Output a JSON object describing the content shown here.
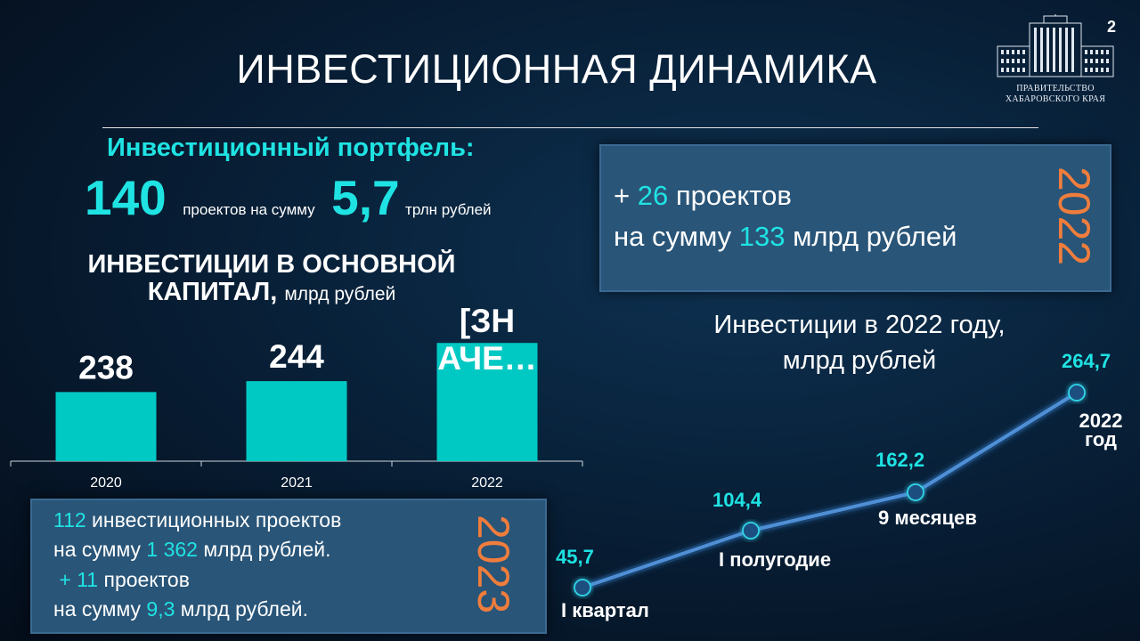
{
  "page_number": "2",
  "logo": {
    "line1": "ПРАВИТЕЛЬСТВО",
    "line2": "ХАБАРОВСКОГО КРАЯ"
  },
  "title": "ИНВЕСТИЦИОННАЯ ДИНАМИКА",
  "portfolio": {
    "heading": "Инвестиционный портфель:",
    "projects_count": "140",
    "projects_text": "проектов на сумму",
    "sum_value": "5,7",
    "sum_unit": "трлн рублей"
  },
  "capital_chart": {
    "heading": "ИНВЕСТИЦИИ В ОСНОВНОЙ КАПИТАЛ,",
    "unit": "млрд рублей"
  },
  "box_2022": {
    "year": "2022",
    "line1_prefix": "+ ",
    "line1_count": "26",
    "line1_suffix": " проектов",
    "line2_prefix": "на сумму ",
    "line2_value": "133",
    "line2_suffix": " млрд рублей"
  },
  "line_chart_heading": {
    "line1": "Инвестиции в 2022 году,",
    "line2": "млрд рублей"
  },
  "box_2023": {
    "year": "2023",
    "l1_count": "112",
    "l1_text": " инвестиционных проектов",
    "l2_prefix": "на сумму ",
    "l2_value": "1 362",
    "l2_suffix": " млрд рублей.",
    "l3_prefix": " + ",
    "l3_count": "11",
    "l3_suffix": " проектов",
    "l4_prefix": "на сумму ",
    "l4_value": "9,3",
    "l4_suffix": " млрд рублей."
  },
  "colors": {
    "accent_cyan": "#1fe3e3",
    "accent_orange": "#f07d3c",
    "box_fill": "#295578",
    "bar_fill": "#00c9c3",
    "line_color": "#4f8fd6"
  },
  "chart_data": [
    {
      "type": "bar",
      "categories": [
        "2020",
        "2021",
        "2022"
      ],
      "values": [
        238,
        244,
        265
      ],
      "data_labels": [
        "238",
        "244",
        "[ЗНАЧЕ…"
      ],
      "ylim": [
        200,
        270
      ]
    },
    {
      "type": "line",
      "categories": [
        "I квартал",
        "I полугодие",
        "9 месяцев",
        "2022 год"
      ],
      "values": [
        45.7,
        104.4,
        162.2,
        264.7
      ],
      "data_labels": [
        "45,7",
        "104,4",
        "162,2",
        "264,7"
      ]
    }
  ]
}
